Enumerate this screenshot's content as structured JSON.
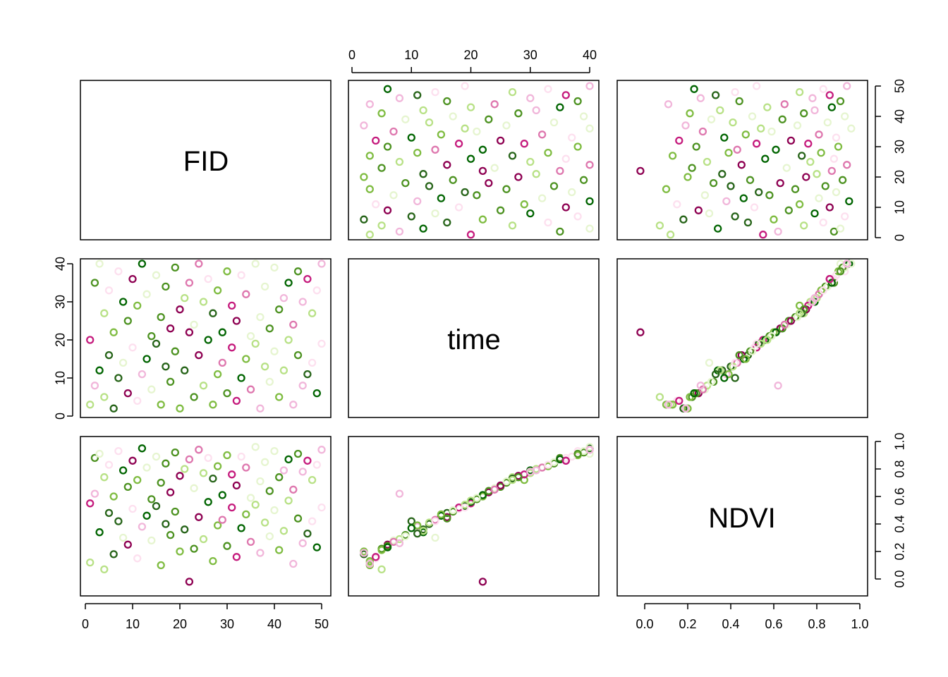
{
  "chart_data": {
    "type": "scatter",
    "variables": [
      {
        "name": "FID",
        "range": [
          0,
          50
        ],
        "ticks": [
          0,
          10,
          20,
          30,
          40,
          50
        ]
      },
      {
        "name": "time",
        "range": [
          0,
          40
        ],
        "ticks": [
          0,
          10,
          20,
          30,
          40
        ]
      },
      {
        "name": "NDVI",
        "range": [
          0,
          1.0
        ],
        "ticks": [
          0.0,
          0.2,
          0.4,
          0.6,
          0.8,
          1.0
        ]
      }
    ],
    "tick_labels": {
      "FID": [
        "0",
        "10",
        "20",
        "30",
        "40",
        "50"
      ],
      "time": [
        "0",
        "10",
        "20",
        "30",
        "40"
      ],
      "NDVI": [
        "0.0",
        "0.2",
        "0.4",
        "0.6",
        "0.8",
        "1.0"
      ]
    },
    "palette": [
      "#8e0152",
      "#c51b7d",
      "#de77ae",
      "#f1b6da",
      "#fde0ef",
      "#e6f5d0",
      "#b8e186",
      "#7fbc41",
      "#4d9221",
      "#276419",
      "#006400"
    ],
    "observations": [
      {
        "FID": 1,
        "time": 3,
        "NDVI": 0.12
      },
      {
        "FID": 1,
        "time": 20,
        "NDVI": 0.55
      },
      {
        "FID": 2,
        "time": 8,
        "NDVI": 0.62
      },
      {
        "FID": 2,
        "time": 35,
        "NDVI": 0.88
      },
      {
        "FID": 3,
        "time": 12,
        "NDVI": 0.34
      },
      {
        "FID": 3,
        "time": 40,
        "NDVI": 0.91
      },
      {
        "FID": 4,
        "time": 5,
        "NDVI": 0.07
      },
      {
        "FID": 4,
        "time": 27,
        "NDVI": 0.74
      },
      {
        "FID": 5,
        "time": 16,
        "NDVI": 0.48
      },
      {
        "FID": 5,
        "time": 33,
        "NDVI": 0.83
      },
      {
        "FID": 6,
        "time": 2,
        "NDVI": 0.18
      },
      {
        "FID": 6,
        "time": 22,
        "NDVI": 0.6
      },
      {
        "FID": 7,
        "time": 10,
        "NDVI": 0.42
      },
      {
        "FID": 7,
        "time": 38,
        "NDVI": 0.93
      },
      {
        "FID": 8,
        "time": 14,
        "NDVI": 0.3
      },
      {
        "FID": 8,
        "time": 30,
        "NDVI": 0.79
      },
      {
        "FID": 9,
        "time": 6,
        "NDVI": 0.25
      },
      {
        "FID": 9,
        "time": 25,
        "NDVI": 0.67
      },
      {
        "FID": 10,
        "time": 18,
        "NDVI": 0.51
      },
      {
        "FID": 10,
        "time": 36,
        "NDVI": 0.86
      },
      {
        "FID": 11,
        "time": 4,
        "NDVI": 0.15
      },
      {
        "FID": 11,
        "time": 29,
        "NDVI": 0.72
      },
      {
        "FID": 12,
        "time": 11,
        "NDVI": 0.38
      },
      {
        "FID": 12,
        "time": 40,
        "NDVI": 0.95
      },
      {
        "FID": 13,
        "time": 15,
        "NDVI": 0.46
      },
      {
        "FID": 13,
        "time": 32,
        "NDVI": 0.81
      },
      {
        "FID": 14,
        "time": 7,
        "NDVI": 0.28
      },
      {
        "FID": 14,
        "time": 21,
        "NDVI": 0.58
      },
      {
        "FID": 15,
        "time": 19,
        "NDVI": 0.53
      },
      {
        "FID": 15,
        "time": 37,
        "NDVI": 0.89
      },
      {
        "FID": 16,
        "time": 3,
        "NDVI": 0.1
      },
      {
        "FID": 16,
        "time": 26,
        "NDVI": 0.7
      },
      {
        "FID": 17,
        "time": 13,
        "NDVI": 0.4
      },
      {
        "FID": 17,
        "time": 34,
        "NDVI": 0.84
      },
      {
        "FID": 18,
        "time": 9,
        "NDVI": 0.32
      },
      {
        "FID": 18,
        "time": 23,
        "NDVI": 0.63
      },
      {
        "FID": 19,
        "time": 17,
        "NDVI": 0.49
      },
      {
        "FID": 19,
        "time": 39,
        "NDVI": 0.92
      },
      {
        "FID": 20,
        "time": 2,
        "NDVI": 0.2
      },
      {
        "FID": 20,
        "time": 28,
        "NDVI": 0.75
      },
      {
        "FID": 21,
        "time": 12,
        "NDVI": 0.36
      },
      {
        "FID": 21,
        "time": 31,
        "NDVI": 0.8
      },
      {
        "FID": 22,
        "time": 22,
        "NDVI": -0.02
      },
      {
        "FID": 22,
        "time": 35,
        "NDVI": 0.87
      },
      {
        "FID": 23,
        "time": 5,
        "NDVI": 0.22
      },
      {
        "FID": 23,
        "time": 24,
        "NDVI": 0.66
      },
      {
        "FID": 24,
        "time": 16,
        "NDVI": 0.45
      },
      {
        "FID": 24,
        "time": 40,
        "NDVI": 0.94
      },
      {
        "FID": 25,
        "time": 8,
        "NDVI": 0.29
      },
      {
        "FID": 25,
        "time": 30,
        "NDVI": 0.77
      },
      {
        "FID": 26,
        "time": 20,
        "NDVI": 0.56
      },
      {
        "FID": 26,
        "time": 36,
        "NDVI": 0.88
      },
      {
        "FID": 27,
        "time": 3,
        "NDVI": 0.13
      },
      {
        "FID": 27,
        "time": 27,
        "NDVI": 0.73
      },
      {
        "FID": 28,
        "time": 11,
        "NDVI": 0.39
      },
      {
        "FID": 28,
        "time": 33,
        "NDVI": 0.82
      },
      {
        "FID": 29,
        "time": 14,
        "NDVI": 0.43
      },
      {
        "FID": 29,
        "time": 22,
        "NDVI": 0.61
      },
      {
        "FID": 30,
        "time": 6,
        "NDVI": 0.24
      },
      {
        "FID": 30,
        "time": 38,
        "NDVI": 0.9
      },
      {
        "FID": 31,
        "time": 18,
        "NDVI": 0.52
      },
      {
        "FID": 31,
        "time": 29,
        "NDVI": 0.76
      },
      {
        "FID": 32,
        "time": 4,
        "NDVI": 0.16
      },
      {
        "FID": 32,
        "time": 25,
        "NDVI": 0.68
      },
      {
        "FID": 33,
        "time": 10,
        "NDVI": 0.37
      },
      {
        "FID": 33,
        "time": 37,
        "NDVI": 0.89
      },
      {
        "FID": 34,
        "time": 15,
        "NDVI": 0.47
      },
      {
        "FID": 34,
        "time": 32,
        "NDVI": 0.81
      },
      {
        "FID": 35,
        "time": 7,
        "NDVI": 0.27
      },
      {
        "FID": 35,
        "time": 21,
        "NDVI": 0.59
      },
      {
        "FID": 36,
        "time": 19,
        "NDVI": 0.54
      },
      {
        "FID": 36,
        "time": 40,
        "NDVI": 0.96
      },
      {
        "FID": 37,
        "time": 2,
        "NDVI": 0.19
      },
      {
        "FID": 37,
        "time": 26,
        "NDVI": 0.71
      },
      {
        "FID": 38,
        "time": 13,
        "NDVI": 0.41
      },
      {
        "FID": 38,
        "time": 34,
        "NDVI": 0.85
      },
      {
        "FID": 39,
        "time": 9,
        "NDVI": 0.31
      },
      {
        "FID": 39,
        "time": 23,
        "NDVI": 0.64
      },
      {
        "FID": 40,
        "time": 17,
        "NDVI": 0.5
      },
      {
        "FID": 40,
        "time": 39,
        "NDVI": 0.93
      },
      {
        "FID": 41,
        "time": 5,
        "NDVI": 0.21
      },
      {
        "FID": 41,
        "time": 28,
        "NDVI": 0.74
      },
      {
        "FID": 42,
        "time": 12,
        "NDVI": 0.35
      },
      {
        "FID": 42,
        "time": 31,
        "NDVI": 0.79
      },
      {
        "FID": 43,
        "time": 20,
        "NDVI": 0.57
      },
      {
        "FID": 43,
        "time": 35,
        "NDVI": 0.87
      },
      {
        "FID": 44,
        "time": 3,
        "NDVI": 0.11
      },
      {
        "FID": 44,
        "time": 24,
        "NDVI": 0.65
      },
      {
        "FID": 45,
        "time": 16,
        "NDVI": 0.44
      },
      {
        "FID": 45,
        "time": 38,
        "NDVI": 0.91
      },
      {
        "FID": 46,
        "time": 8,
        "NDVI": 0.26
      },
      {
        "FID": 46,
        "time": 30,
        "NDVI": 0.78
      },
      {
        "FID": 47,
        "time": 11,
        "NDVI": 0.33
      },
      {
        "FID": 47,
        "time": 36,
        "NDVI": 0.86
      },
      {
        "FID": 48,
        "time": 14,
        "NDVI": 0.42
      },
      {
        "FID": 48,
        "time": 27,
        "NDVI": 0.72
      },
      {
        "FID": 49,
        "time": 6,
        "NDVI": 0.23
      },
      {
        "FID": 49,
        "time": 33,
        "NDVI": 0.83
      },
      {
        "FID": 50,
        "time": 19,
        "NDVI": 0.52
      },
      {
        "FID": 50,
        "time": 40,
        "NDVI": 0.94
      }
    ]
  }
}
